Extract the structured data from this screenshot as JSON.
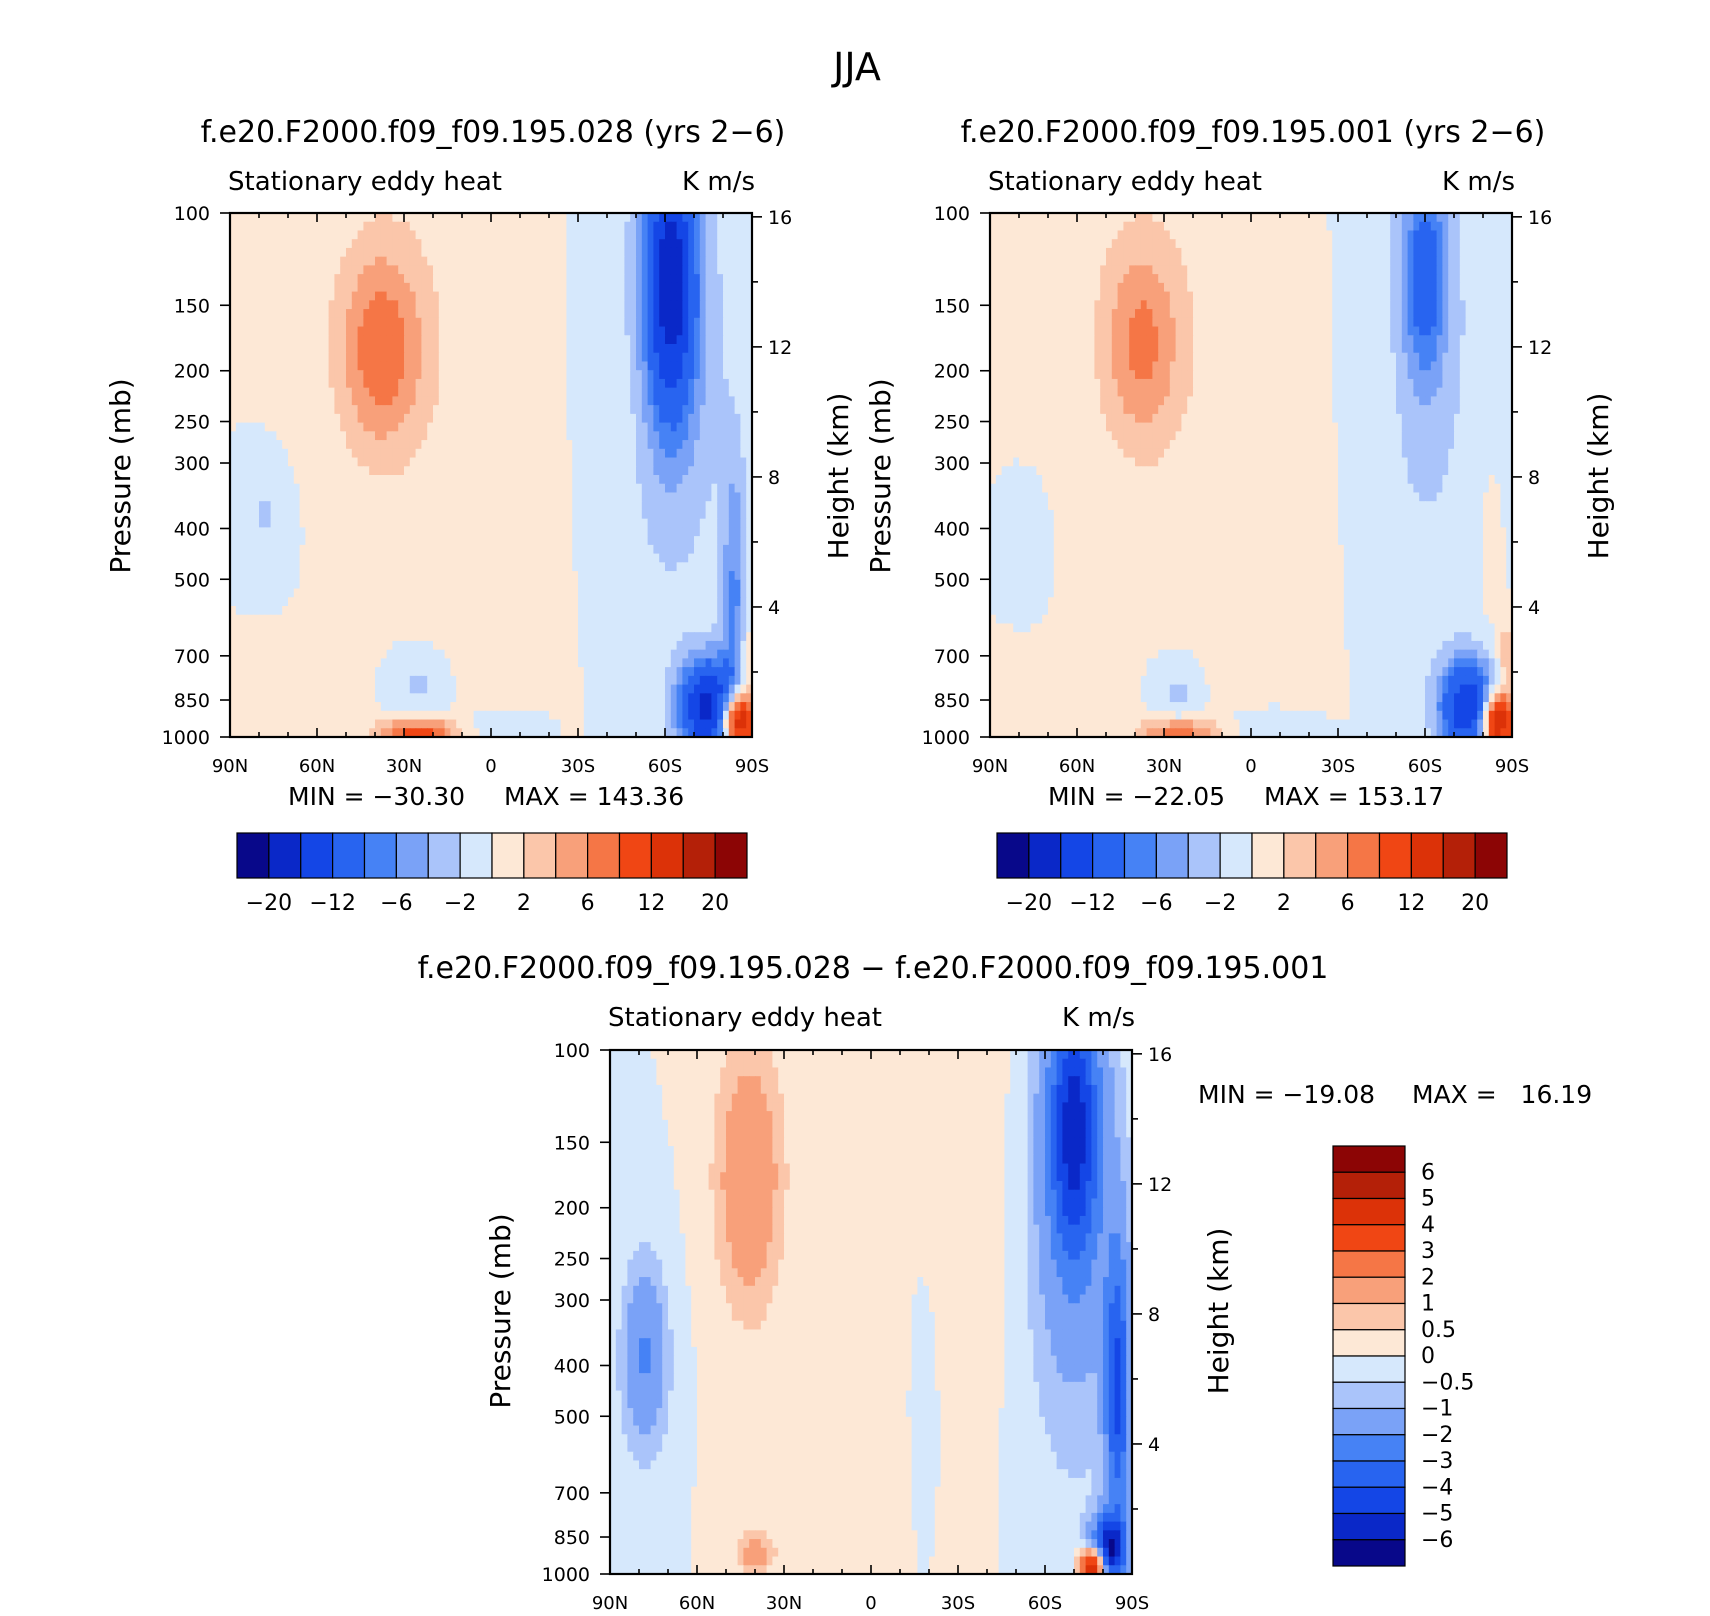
{
  "figure_title": "JJA",
  "chart_data": [
    {
      "type": "heatmap",
      "id": "p1",
      "title": "f.e20.F2000.f09_f09.195.028 (yrs 2−6)",
      "left_string": "Stationary eddy heat",
      "right_string": "K m/s",
      "ylabel": "Pressure (mb)",
      "ylabel_right": "Height (km)",
      "xticks": [
        "90N",
        "60N",
        "30N",
        "0",
        "30S",
        "60S",
        "90S"
      ],
      "yticks": [
        "100",
        "150",
        "200",
        "250",
        "300",
        "400",
        "500",
        "700",
        "850",
        "1000"
      ],
      "yticks_right": [
        "16",
        "12",
        "8",
        "4"
      ],
      "min_text": "MIN = −30.30",
      "max_text": "MAX = 143.36",
      "min": -30.3,
      "max": 143.36,
      "cbar_orientation": "horizontal",
      "cbar_levels": [
        -20,
        -16,
        -12,
        -8,
        -6,
        -4,
        -2,
        0,
        2,
        4,
        6,
        8,
        12,
        16,
        20
      ],
      "cbar_labels": [
        "−20",
        "−12",
        "−6",
        "−2",
        "2",
        "6",
        "12",
        "20"
      ],
      "features": [
        {
          "lat": 38,
          "p": 185,
          "w": 10,
          "h": 0.3,
          "v": 6
        },
        {
          "lat": 36,
          "p": 160,
          "w": 16,
          "h": 0.48,
          "v": 1.8
        },
        {
          "lat": 6,
          "p": 300,
          "w": 20,
          "h": 0.9,
          "v": 0.6
        },
        {
          "lat": 78,
          "p": 380,
          "w": 5,
          "h": 0.14,
          "v": -2.2
        },
        {
          "lat": 75,
          "p": 800,
          "w": 9,
          "h": 0.12,
          "v": 0.5
        },
        {
          "lat": 25,
          "p": 800,
          "w": 6,
          "h": 0.1,
          "v": -2.5
        },
        {
          "lat": 25,
          "p": 975,
          "w": 10,
          "h": 0.04,
          "v": 9
        },
        {
          "lat": 0,
          "p": 960,
          "w": 10,
          "h": 0.05,
          "v": -1.5
        },
        {
          "lat": -62,
          "p": 135,
          "w": 6,
          "h": 0.4,
          "v": -16
        },
        {
          "lat": -62,
          "p": 190,
          "w": 14,
          "h": 0.75,
          "v": -4
        },
        {
          "lat": -48,
          "p": 220,
          "w": 6,
          "h": 0.4,
          "v": 1.0
        },
        {
          "lat": -84,
          "p": 550,
          "w": 3,
          "h": 0.45,
          "v": -6
        },
        {
          "lat": -75,
          "p": 880,
          "w": 7,
          "h": 0.15,
          "v": -18
        },
        {
          "lat": -85,
          "p": 930,
          "w": 4,
          "h": 0.09,
          "v": 22
        },
        {
          "lat": -88,
          "p": 720,
          "w": 2.5,
          "h": 0.1,
          "v": 4
        }
      ]
    },
    {
      "type": "heatmap",
      "id": "p2",
      "title": "f.e20.F2000.f09_f09.195.001 (yrs 2−6)",
      "left_string": "Stationary eddy heat",
      "right_string": "K m/s",
      "ylabel": "Pressure (mb)",
      "ylabel_right": "Height (km)",
      "xticks": [
        "90N",
        "60N",
        "30N",
        "0",
        "30S",
        "60S",
        "90S"
      ],
      "yticks": [
        "100",
        "150",
        "200",
        "250",
        "300",
        "400",
        "500",
        "700",
        "850",
        "1000"
      ],
      "yticks_right": [
        "16",
        "12",
        "8",
        "4"
      ],
      "min_text": "MIN = −22.05",
      "max_text": "MAX = 153.17",
      "min": -22.05,
      "max": 153.17,
      "cbar_orientation": "horizontal",
      "cbar_levels": [
        -20,
        -16,
        -12,
        -8,
        -6,
        -4,
        -2,
        0,
        2,
        4,
        6,
        8,
        12,
        16,
        20
      ],
      "cbar_labels": [
        "−20",
        "−12",
        "−6",
        "−2",
        "2",
        "6",
        "12",
        "20"
      ],
      "features": [
        {
          "lat": 38,
          "p": 180,
          "w": 9,
          "h": 0.3,
          "v": 5
        },
        {
          "lat": 36,
          "p": 160,
          "w": 16,
          "h": 0.48,
          "v": 1.8
        },
        {
          "lat": 4,
          "p": 300,
          "w": 20,
          "h": 0.9,
          "v": 0.6
        },
        {
          "lat": 78,
          "p": 420,
          "w": 4,
          "h": 0.12,
          "v": -1.2
        },
        {
          "lat": 74,
          "p": 850,
          "w": 9,
          "h": 0.1,
          "v": 0.6
        },
        {
          "lat": 25,
          "p": 830,
          "w": 5,
          "h": 0.1,
          "v": -2.5
        },
        {
          "lat": 25,
          "p": 975,
          "w": 10,
          "h": 0.04,
          "v": 7
        },
        {
          "lat": -5,
          "p": 960,
          "w": 10,
          "h": 0.05,
          "v": -1.5
        },
        {
          "lat": -60,
          "p": 130,
          "w": 5,
          "h": 0.3,
          "v": -8
        },
        {
          "lat": -60,
          "p": 180,
          "w": 13,
          "h": 0.75,
          "v": -3
        },
        {
          "lat": -45,
          "p": 250,
          "w": 5,
          "h": 0.4,
          "v": 0.8
        },
        {
          "lat": -82,
          "p": 420,
          "w": 3,
          "h": 0.3,
          "v": 0.8
        },
        {
          "lat": -75,
          "p": 880,
          "w": 7,
          "h": 0.15,
          "v": -16
        },
        {
          "lat": -85,
          "p": 930,
          "w": 4,
          "h": 0.09,
          "v": 20
        },
        {
          "lat": -88,
          "p": 700,
          "w": 2.5,
          "h": 0.1,
          "v": 4
        }
      ]
    },
    {
      "type": "heatmap",
      "id": "p3",
      "title": "f.e20.F2000.f09_f09.195.028 − f.e20.F2000.f09_f09.195.001",
      "left_string": "Stationary eddy heat",
      "right_string": "K m/s",
      "ylabel": "Pressure (mb)",
      "ylabel_right": "Height (km)",
      "xticks": [
        "90N",
        "60N",
        "30N",
        "0",
        "30S",
        "60S",
        "90S"
      ],
      "yticks": [
        "100",
        "150",
        "200",
        "250",
        "300",
        "400",
        "500",
        "700",
        "850",
        "1000"
      ],
      "yticks_right": [
        "16",
        "12",
        "8",
        "4"
      ],
      "min_text": "MIN = −19.08",
      "max_text": "MAX =   16.19",
      "min": -19.08,
      "max": 16.19,
      "cbar_orientation": "vertical",
      "cbar_levels": [
        -6,
        -5,
        -4,
        -3,
        -2,
        -1,
        -0.5,
        0,
        0.5,
        1,
        2,
        3,
        4,
        5,
        6
      ],
      "cbar_labels": [
        "6",
        "5",
        "4",
        "3",
        "2",
        "1",
        "0.5",
        "0",
        "−0.5",
        "−1",
        "−2",
        "−3",
        "−4",
        "−5",
        "−6"
      ],
      "features": [
        {
          "lat": 42,
          "p": 180,
          "w": 7,
          "h": 0.35,
          "v": 1.4
        },
        {
          "lat": 42,
          "p": 160,
          "w": 10,
          "h": 0.55,
          "v": 0.6
        },
        {
          "lat": 78,
          "p": 380,
          "w": 5,
          "h": 0.25,
          "v": -1.5
        },
        {
          "lat": 78,
          "p": 400,
          "w": 7,
          "h": 0.4,
          "v": -0.6
        },
        {
          "lat": -30,
          "p": 160,
          "w": 15,
          "h": 0.8,
          "v": 0.4
        },
        {
          "lat": 5,
          "p": 600,
          "w": 12,
          "h": 0.5,
          "v": 0.3
        },
        {
          "lat": -18,
          "p": 450,
          "w": 3,
          "h": 0.35,
          "v": -0.7
        },
        {
          "lat": 40,
          "p": 920,
          "w": 4,
          "h": 0.05,
          "v": 1.2
        },
        {
          "lat": 40,
          "p": 800,
          "w": 8,
          "h": 0.25,
          "v": 0.4
        },
        {
          "lat": -70,
          "p": 140,
          "w": 6,
          "h": 0.4,
          "v": -4.5
        },
        {
          "lat": -70,
          "p": 200,
          "w": 12,
          "h": 0.8,
          "v": -1.5
        },
        {
          "lat": -85,
          "p": 450,
          "w": 3,
          "h": 0.45,
          "v": -4
        },
        {
          "lat": -82,
          "p": 900,
          "w": 4,
          "h": 0.1,
          "v": -6
        },
        {
          "lat": -77,
          "p": 960,
          "w": 3,
          "h": 0.05,
          "v": 7
        }
      ]
    }
  ]
}
